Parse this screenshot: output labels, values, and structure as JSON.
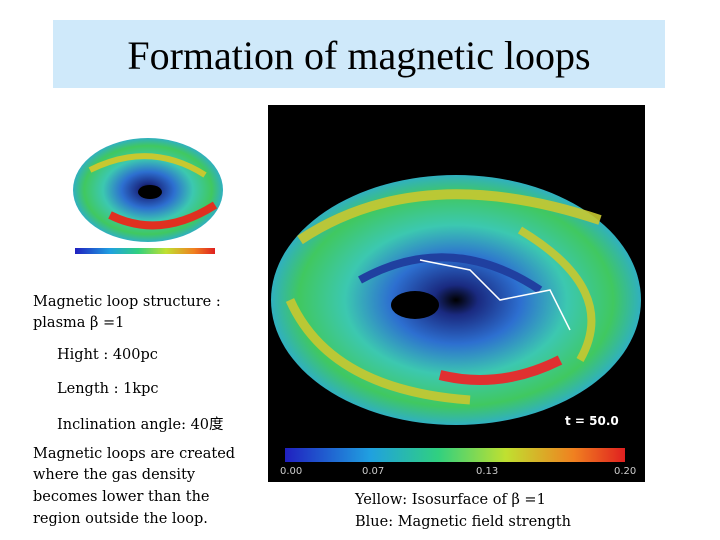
{
  "title": "Formation of magnetic loops",
  "left_text": [
    "Magnetic loop structure :",
    "plasma β =1",
    "Hight  :  400pc",
    "Length :  1kpc",
    "Inclination angle:  40度",
    "Magnetic loops are created",
    "where the gas density",
    "becomes lower than the",
    "region outside the loop."
  ],
  "image": {
    "time": "t = 50.0",
    "colorbar_labels": [
      "0.00",
      "0.07",
      "0.13",
      "0.20"
    ]
  },
  "captions": [
    "Yellow:  Isosurface of β =1",
    "Blue:  Magnetic field strength"
  ]
}
